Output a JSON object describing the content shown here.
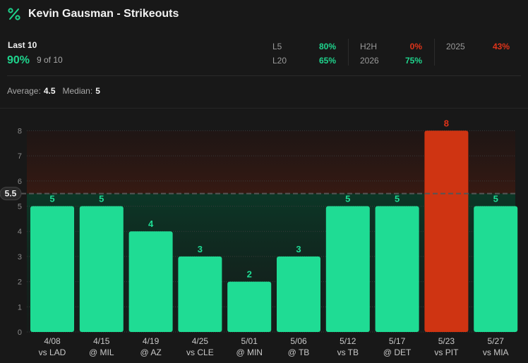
{
  "header": {
    "title": "Kevin Gausman - Strikeouts",
    "icon": "percent-icon"
  },
  "summary": {
    "label": "Last 10",
    "pct": "90%",
    "count": "9 of 10",
    "splits": [
      {
        "label": "L5",
        "value": "80%",
        "tone": "green"
      },
      {
        "label": "L20",
        "value": "65%",
        "tone": "green"
      },
      {
        "label": "H2H",
        "value": "0%",
        "tone": "red"
      },
      {
        "label": "2026",
        "value": "75%",
        "tone": "green"
      },
      {
        "label": "2025",
        "value": "43%",
        "tone": "red"
      }
    ]
  },
  "averages": {
    "avg_label": "Average:",
    "avg_value": "4.5",
    "median_label": "Median:",
    "median_value": "5"
  },
  "colors": {
    "over": "#1fdc94",
    "under": "#cf3412",
    "line": "#555555"
  },
  "chart_data": {
    "type": "bar",
    "line_value": 5.5,
    "line_label": "5.5",
    "ylim": [
      0,
      8
    ],
    "yticks": [
      0,
      1,
      2,
      3,
      4,
      5,
      6,
      7,
      8
    ],
    "categories": [
      "4/08",
      "4/15",
      "4/19",
      "4/25",
      "5/01",
      "5/06",
      "5/12",
      "5/17",
      "5/23",
      "5/27"
    ],
    "opponents": [
      "vs LAD",
      "@ MIL",
      "@ AZ",
      "vs CLE",
      "@ MIN",
      "@ TB",
      "vs TB",
      "@ DET",
      "vs PIT",
      "vs MIA"
    ],
    "values": [
      5,
      5,
      4,
      3,
      2,
      3,
      5,
      5,
      8,
      5
    ]
  }
}
